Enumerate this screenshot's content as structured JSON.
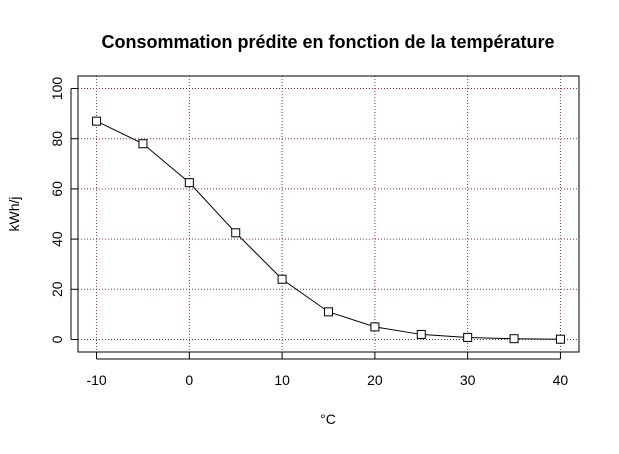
{
  "chart_data": {
    "type": "line",
    "title": "Consommation prédite en fonction de la température",
    "xlabel": "°C",
    "ylabel": "kWh/j",
    "xlim": [
      -12,
      42
    ],
    "ylim": [
      -5,
      105
    ],
    "x_ticks": [
      -10,
      0,
      10,
      20,
      30,
      40
    ],
    "y_ticks": [
      0,
      20,
      40,
      60,
      80,
      100
    ],
    "x_tick_labels": [
      "-10",
      "0",
      "10",
      "20",
      "30",
      "40"
    ],
    "y_tick_labels": [
      "0",
      "20",
      "40",
      "60",
      "80",
      "100"
    ],
    "grid": true,
    "grid_color": "#a52a2a",
    "line_color": "#000000",
    "marker": "open-square",
    "series": [
      {
        "x": [
          -10,
          -5,
          0,
          5,
          10,
          15,
          20,
          25,
          30,
          35,
          40
        ],
        "values": [
          87,
          78,
          62.5,
          42.5,
          24,
          11,
          5,
          2,
          0.8,
          0.3,
          0.1
        ]
      }
    ]
  }
}
